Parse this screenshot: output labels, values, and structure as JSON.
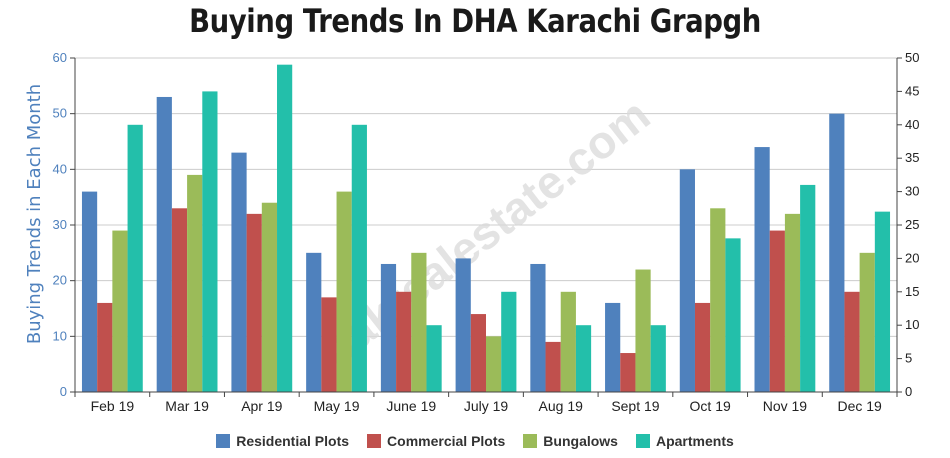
{
  "chart_data": {
    "type": "bar",
    "title": "Buying Trends In DHA Karachi Grapgh",
    "ylabel": "Buying Trends in Each Month",
    "watermark": "pakrealestate.com",
    "categories": [
      "Feb 19",
      "Mar 19",
      "Apr 19",
      "May 19",
      "June 19",
      "July 19",
      "Aug 19",
      "Sept 19",
      "Oct 19",
      "Nov 19",
      "Dec 19"
    ],
    "ylim": [
      0,
      60
    ],
    "yticks": [
      "0",
      "10",
      "20",
      "30",
      "40",
      "50",
      "60"
    ],
    "y2lim": [
      0,
      50
    ],
    "y2ticks": [
      "0",
      "5",
      "10",
      "15",
      "20",
      "25",
      "30",
      "35",
      "40",
      "45",
      "50"
    ],
    "grid": true,
    "legend_position": "bottom",
    "series": [
      {
        "name": "Residential Plots",
        "color": "#4f81bd",
        "axis": "left",
        "values": [
          36,
          53,
          43,
          25,
          23,
          24,
          23,
          16,
          40,
          44,
          50
        ]
      },
      {
        "name": "Commercial Plots",
        "color": "#c0504d",
        "axis": "left",
        "values": [
          16,
          33,
          32,
          17,
          18,
          14,
          9,
          7,
          16,
          29,
          18
        ]
      },
      {
        "name": "Bungalows",
        "color": "#9bbb59",
        "axis": "left",
        "values": [
          29,
          39,
          34,
          36,
          25,
          10,
          18,
          22,
          33,
          32,
          25
        ]
      },
      {
        "name": "Apartments",
        "color": "#23bfaa",
        "axis": "right",
        "values": [
          40,
          45,
          49,
          40,
          10,
          15,
          10,
          10,
          23,
          31,
          27
        ]
      }
    ]
  }
}
